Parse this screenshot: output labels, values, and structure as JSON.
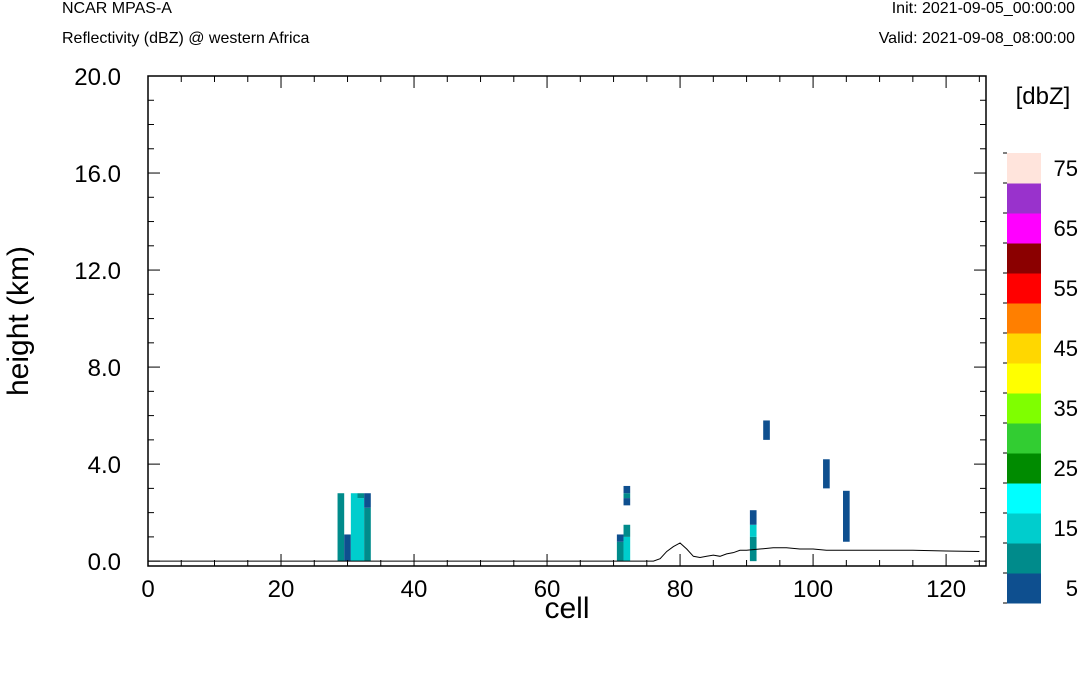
{
  "header": {
    "model": "NCAR MPAS-A",
    "field": "Reflectivity (dBZ) @ western Africa",
    "init": "Init: 2021-09-05_00:00:00",
    "valid": "Valid: 2021-09-08_08:00:00"
  },
  "chart_data": {
    "type": "heatmap",
    "title": "",
    "xlabel": "cell",
    "ylabel": "height (km)",
    "xlim": [
      0,
      126
    ],
    "ylim": [
      -0.2,
      20.0
    ],
    "x_ticks": [
      "0",
      "20",
      "40",
      "60",
      "80",
      "100",
      "120"
    ],
    "y_ticks": [
      "0.0",
      "4.0",
      "8.0",
      "12.0",
      "16.0",
      "20.0"
    ],
    "colorbar": {
      "unit": "[dbZ]",
      "labels": [
        "5",
        "15",
        "25",
        "35",
        "45",
        "55",
        "65",
        "75"
      ],
      "colors": [
        "#0e4f8f",
        "#008b8b",
        "#00cdcd",
        "#00ffff",
        "#008b00",
        "#32cd32",
        "#7fff00",
        "#ffff00",
        "#ffd700",
        "#ff7f00",
        "#ff0000",
        "#8b0000",
        "#ff00ff",
        "#9932cc",
        "#ffe4dc"
      ]
    },
    "cells": [
      {
        "x": 29,
        "y0": 0.0,
        "y1": 2.8,
        "dbz": 10
      },
      {
        "x": 30,
        "y0": 0.0,
        "y1": 1.1,
        "dbz": 5
      },
      {
        "x": 31,
        "y0": 0.0,
        "y1": 2.8,
        "dbz": 15
      },
      {
        "x": 32,
        "y0": 0.0,
        "y1": 2.6,
        "dbz": 15
      },
      {
        "x": 32,
        "y0": 2.6,
        "y1": 2.8,
        "dbz": 10
      },
      {
        "x": 33,
        "y0": 0.0,
        "y1": 2.2,
        "dbz": 10
      },
      {
        "x": 33,
        "y0": 2.2,
        "y1": 2.8,
        "dbz": 5
      },
      {
        "x": 71,
        "y0": 0.0,
        "y1": 0.8,
        "dbz": 10
      },
      {
        "x": 71,
        "y0": 0.8,
        "y1": 1.1,
        "dbz": 5
      },
      {
        "x": 72,
        "y0": 0.0,
        "y1": 1.0,
        "dbz": 15
      },
      {
        "x": 72,
        "y0": 1.0,
        "y1": 1.5,
        "dbz": 10
      },
      {
        "x": 72,
        "y0": 2.3,
        "y1": 2.6,
        "dbz": 5
      },
      {
        "x": 72,
        "y0": 2.6,
        "y1": 2.8,
        "dbz": 10
      },
      {
        "x": 72,
        "y0": 2.8,
        "y1": 3.1,
        "dbz": 5
      },
      {
        "x": 91,
        "y0": 0.0,
        "y1": 1.0,
        "dbz": 10
      },
      {
        "x": 91,
        "y0": 1.0,
        "y1": 1.5,
        "dbz": 15
      },
      {
        "x": 91,
        "y0": 1.5,
        "y1": 2.1,
        "dbz": 5
      },
      {
        "x": 93,
        "y0": 5.0,
        "y1": 5.8,
        "dbz": 5
      },
      {
        "x": 102,
        "y0": 3.0,
        "y1": 4.2,
        "dbz": 5
      },
      {
        "x": 105,
        "y0": 0.8,
        "y1": 2.9,
        "dbz": 5
      }
    ],
    "terrain": [
      [
        0,
        0.0
      ],
      [
        76,
        0.0
      ],
      [
        77,
        0.1
      ],
      [
        78,
        0.4
      ],
      [
        79,
        0.6
      ],
      [
        80,
        0.75
      ],
      [
        81,
        0.5
      ],
      [
        82,
        0.2
      ],
      [
        83,
        0.15
      ],
      [
        84,
        0.2
      ],
      [
        85,
        0.25
      ],
      [
        86,
        0.2
      ],
      [
        87,
        0.3
      ],
      [
        88,
        0.35
      ],
      [
        89,
        0.45
      ],
      [
        90,
        0.45
      ],
      [
        92,
        0.5
      ],
      [
        94,
        0.55
      ],
      [
        96,
        0.55
      ],
      [
        98,
        0.5
      ],
      [
        100,
        0.5
      ],
      [
        102,
        0.45
      ],
      [
        104,
        0.45
      ],
      [
        106,
        0.45
      ],
      [
        110,
        0.45
      ],
      [
        115,
        0.45
      ],
      [
        120,
        0.42
      ],
      [
        125,
        0.4
      ]
    ]
  }
}
